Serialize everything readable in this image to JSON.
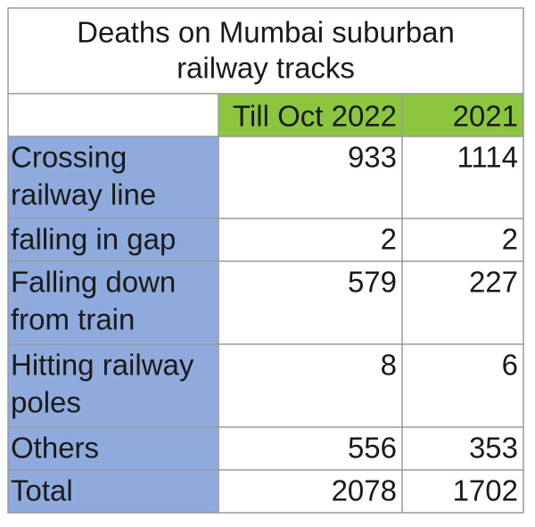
{
  "chart_data": {
    "type": "table",
    "title": "Deaths on Mumbai suburban railway tracks",
    "title_lines": [
      "Deaths on Mumbai suburban",
      "railway tracks"
    ],
    "columns": [
      "Till Oct 2022",
      "2021"
    ],
    "rows": [
      {
        "label": "Crossing railway line",
        "label_lines": [
          "Crossing",
          "railway line"
        ],
        "values": [
          933,
          1114
        ]
      },
      {
        "label": "falling in gap",
        "label_lines": [
          "falling in gap"
        ],
        "values": [
          2,
          2
        ]
      },
      {
        "label": "Falling down from train",
        "label_lines": [
          "Falling down",
          "from train"
        ],
        "values": [
          579,
          227
        ]
      },
      {
        "label": "Hitting railway poles",
        "label_lines": [
          "Hitting railway",
          "poles"
        ],
        "values": [
          8,
          6
        ]
      },
      {
        "label": "Others",
        "label_lines": [
          "Others"
        ],
        "values": [
          556,
          353
        ]
      },
      {
        "label": "Total",
        "label_lines": [
          "Total"
        ],
        "values": [
          2078,
          1702
        ]
      }
    ],
    "colors": {
      "header_fill": "#8cc63f",
      "label_fill": "#8faadc",
      "cell_fill": "#ffffff",
      "grid": "#9a9a9a"
    }
  }
}
